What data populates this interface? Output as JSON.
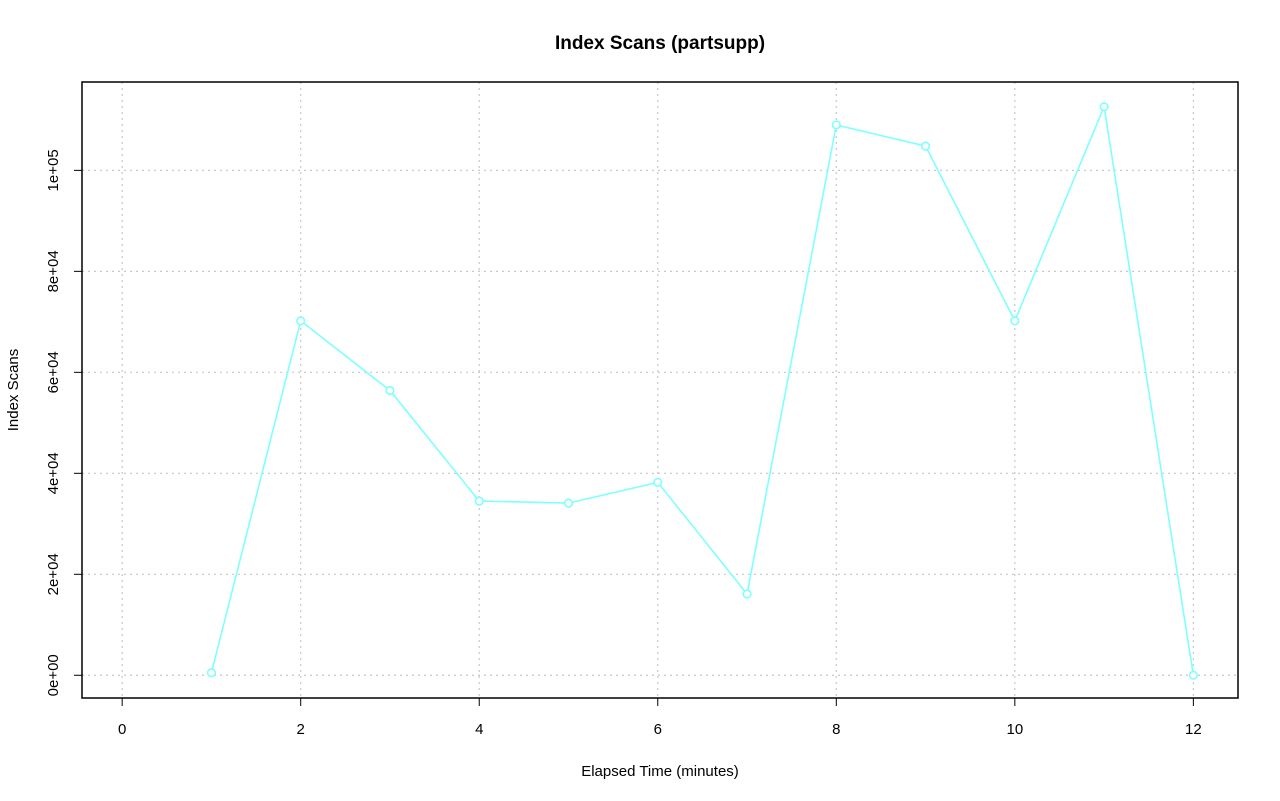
{
  "chart_data": {
    "type": "line",
    "title": "Index Scans (partsupp)",
    "xlabel": "Elapsed Time (minutes)",
    "ylabel": "Index Scans",
    "xlim": [
      -0.45,
      12.5
    ],
    "ylim": [
      -4500,
      117500
    ],
    "x_ticks": [
      0,
      2,
      4,
      6,
      8,
      10,
      12
    ],
    "x_tick_labels": [
      "0",
      "2",
      "4",
      "6",
      "8",
      "10",
      "12"
    ],
    "y_ticks": [
      0,
      20000,
      40000,
      60000,
      80000,
      100000
    ],
    "y_tick_labels": [
      "0e+00",
      "2e+04",
      "4e+04",
      "6e+04",
      "8e+04",
      "1e+05"
    ],
    "grid": true,
    "series": [
      {
        "color": "#7fffff",
        "marker": "circle",
        "x": [
          1,
          2,
          3,
          4,
          5,
          6,
          7,
          8,
          9,
          10,
          11,
          12
        ],
        "y": [
          500,
          70200,
          56400,
          34500,
          34100,
          38200,
          16100,
          109000,
          104800,
          70200,
          112600,
          0
        ]
      }
    ]
  }
}
